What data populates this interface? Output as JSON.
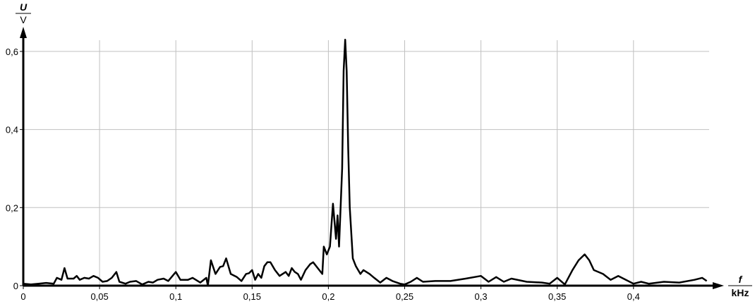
{
  "chart_data": {
    "type": "line",
    "title": "",
    "ylabel": {
      "symbol": "U",
      "unit": "V"
    },
    "xlabel": {
      "symbol": "f",
      "unit": "kHz"
    },
    "xlim": [
      0,
      0.45
    ],
    "ylim": [
      0,
      0.6
    ],
    "grid": true,
    "x_ticks": [
      0,
      0.05,
      0.1,
      0.15,
      0.2,
      0.25,
      0.3,
      0.35,
      0.4
    ],
    "x_tick_labels": [
      "0",
      "0,05",
      "0,1",
      "0,15",
      "0,2",
      "0,25",
      "0,3",
      "0,35",
      "0,4"
    ],
    "y_ticks": [
      0,
      0.2,
      0.4,
      0.6
    ],
    "y_tick_labels": [
      "0",
      "0,2",
      "0,4",
      "0,6"
    ],
    "line_color": "#000000",
    "grid_color": "#c0c0c0",
    "points": [
      [
        0,
        0.005
      ],
      [
        0.005,
        0.003
      ],
      [
        0.01,
        0.005
      ],
      [
        0.015,
        0.007
      ],
      [
        0.02,
        0.005
      ],
      [
        0.022,
        0.02
      ],
      [
        0.025,
        0.015
      ],
      [
        0.027,
        0.045
      ],
      [
        0.029,
        0.018
      ],
      [
        0.033,
        0.018
      ],
      [
        0.035,
        0.025
      ],
      [
        0.037,
        0.015
      ],
      [
        0.04,
        0.02
      ],
      [
        0.043,
        0.018
      ],
      [
        0.046,
        0.025
      ],
      [
        0.049,
        0.02
      ],
      [
        0.052,
        0.01
      ],
      [
        0.055,
        0.012
      ],
      [
        0.058,
        0.02
      ],
      [
        0.061,
        0.035
      ],
      [
        0.063,
        0.01
      ],
      [
        0.067,
        0.005
      ],
      [
        0.07,
        0.01
      ],
      [
        0.074,
        0.012
      ],
      [
        0.078,
        0.003
      ],
      [
        0.082,
        0.01
      ],
      [
        0.085,
        0.008
      ],
      [
        0.088,
        0.015
      ],
      [
        0.092,
        0.018
      ],
      [
        0.095,
        0.012
      ],
      [
        0.1,
        0.035
      ],
      [
        0.103,
        0.015
      ],
      [
        0.108,
        0.015
      ],
      [
        0.111,
        0.02
      ],
      [
        0.116,
        0.008
      ],
      [
        0.12,
        0.02
      ],
      [
        0.121,
        0.0
      ],
      [
        0.123,
        0.065
      ],
      [
        0.126,
        0.03
      ],
      [
        0.129,
        0.048
      ],
      [
        0.131,
        0.05
      ],
      [
        0.133,
        0.07
      ],
      [
        0.136,
        0.03
      ],
      [
        0.14,
        0.022
      ],
      [
        0.143,
        0.012
      ],
      [
        0.146,
        0.03
      ],
      [
        0.148,
        0.032
      ],
      [
        0.15,
        0.04
      ],
      [
        0.152,
        0.015
      ],
      [
        0.154,
        0.03
      ],
      [
        0.156,
        0.02
      ],
      [
        0.158,
        0.05
      ],
      [
        0.16,
        0.06
      ],
      [
        0.162,
        0.06
      ],
      [
        0.165,
        0.04
      ],
      [
        0.168,
        0.025
      ],
      [
        0.172,
        0.035
      ],
      [
        0.174,
        0.025
      ],
      [
        0.176,
        0.045
      ],
      [
        0.178,
        0.035
      ],
      [
        0.18,
        0.03
      ],
      [
        0.182,
        0.015
      ],
      [
        0.185,
        0.04
      ],
      [
        0.188,
        0.055
      ],
      [
        0.19,
        0.06
      ],
      [
        0.193,
        0.045
      ],
      [
        0.196,
        0.03
      ],
      [
        0.197,
        0.1
      ],
      [
        0.199,
        0.08
      ],
      [
        0.201,
        0.1
      ],
      [
        0.203,
        0.21
      ],
      [
        0.205,
        0.12
      ],
      [
        0.206,
        0.18
      ],
      [
        0.207,
        0.1
      ],
      [
        0.209,
        0.3
      ],
      [
        0.21,
        0.55
      ],
      [
        0.211,
        0.63
      ],
      [
        0.212,
        0.55
      ],
      [
        0.213,
        0.35
      ],
      [
        0.214,
        0.2
      ],
      [
        0.216,
        0.07
      ],
      [
        0.218,
        0.05
      ],
      [
        0.221,
        0.03
      ],
      [
        0.223,
        0.04
      ],
      [
        0.227,
        0.03
      ],
      [
        0.23,
        0.02
      ],
      [
        0.234,
        0.008
      ],
      [
        0.238,
        0.02
      ],
      [
        0.242,
        0.012
      ],
      [
        0.247,
        0.005
      ],
      [
        0.25,
        0.003
      ],
      [
        0.254,
        0.01
      ],
      [
        0.258,
        0.02
      ],
      [
        0.262,
        0.01
      ],
      [
        0.27,
        0.012
      ],
      [
        0.28,
        0.012
      ],
      [
        0.29,
        0.018
      ],
      [
        0.3,
        0.025
      ],
      [
        0.305,
        0.01
      ],
      [
        0.31,
        0.022
      ],
      [
        0.315,
        0.01
      ],
      [
        0.32,
        0.018
      ],
      [
        0.33,
        0.01
      ],
      [
        0.34,
        0.008
      ],
      [
        0.345,
        0.005
      ],
      [
        0.35,
        0.02
      ],
      [
        0.355,
        0.003
      ],
      [
        0.36,
        0.04
      ],
      [
        0.364,
        0.065
      ],
      [
        0.368,
        0.08
      ],
      [
        0.371,
        0.065
      ],
      [
        0.374,
        0.04
      ],
      [
        0.38,
        0.03
      ],
      [
        0.385,
        0.015
      ],
      [
        0.39,
        0.025
      ],
      [
        0.395,
        0.015
      ],
      [
        0.4,
        0.005
      ],
      [
        0.405,
        0.01
      ],
      [
        0.41,
        0.005
      ],
      [
        0.42,
        0.01
      ],
      [
        0.43,
        0.008
      ],
      [
        0.44,
        0.015
      ],
      [
        0.445,
        0.02
      ],
      [
        0.448,
        0.012
      ]
    ]
  }
}
